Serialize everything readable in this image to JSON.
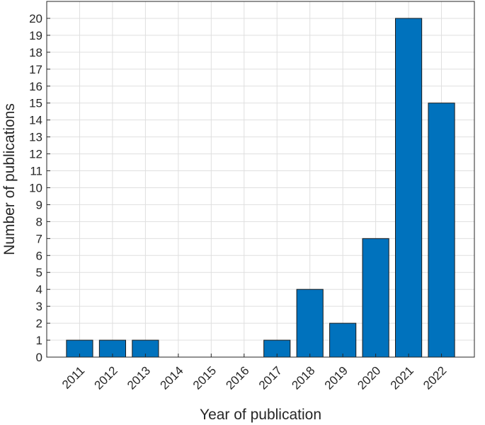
{
  "chart_data": {
    "type": "bar",
    "categories": [
      "2011",
      "2012",
      "2013",
      "2014",
      "2015",
      "2016",
      "2017",
      "2018",
      "2019",
      "2020",
      "2021",
      "2022"
    ],
    "values": [
      1,
      1,
      1,
      0,
      0,
      0,
      1,
      4,
      2,
      7,
      20,
      15
    ],
    "title": "",
    "xlabel": "Year of publication",
    "ylabel": "Number of publications",
    "ylim": [
      0,
      21
    ],
    "yticks": [
      0,
      1,
      2,
      3,
      4,
      5,
      6,
      7,
      8,
      9,
      10,
      11,
      12,
      13,
      14,
      15,
      16,
      17,
      18,
      19,
      20
    ],
    "grid": true,
    "bar_color": "#0072BD"
  }
}
